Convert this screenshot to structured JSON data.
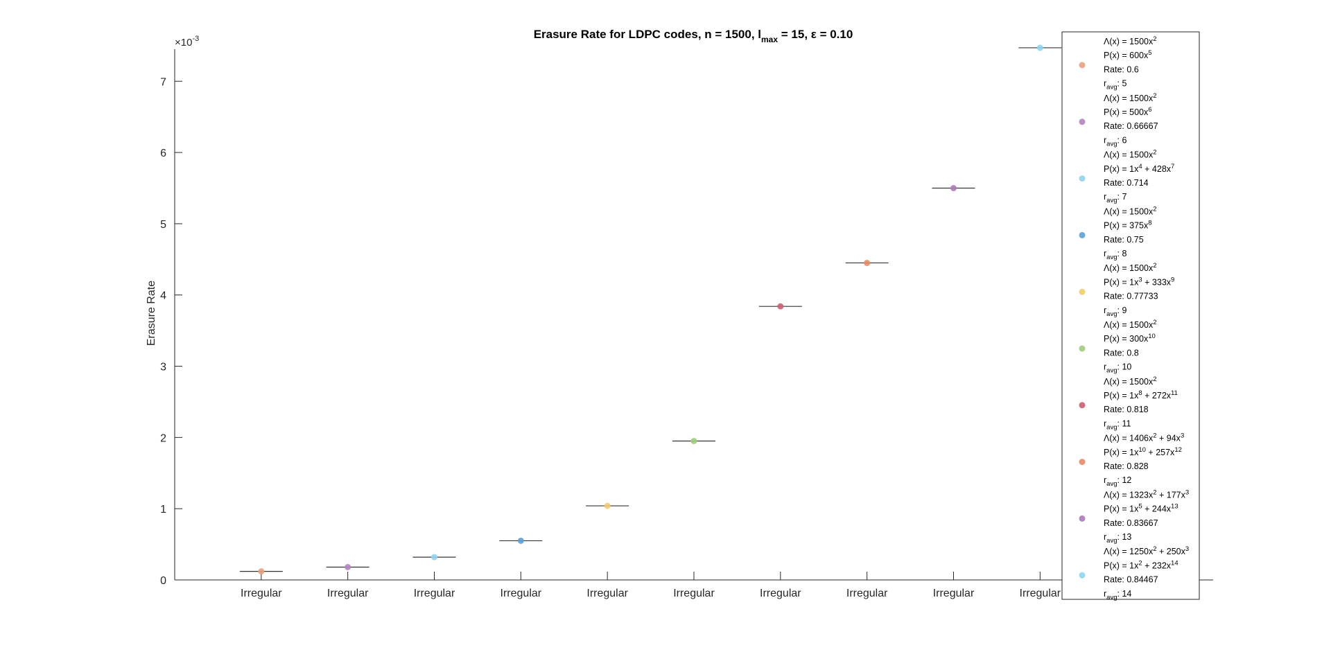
{
  "chart_data": {
    "type": "scatter",
    "title_parts": {
      "pre": "Erasure Rate for LDPC codes, n = 1500, l",
      "sub": "max",
      "post": " = 15, ε = 0.10"
    },
    "xlabel": "",
    "ylabel": "Erasure Rate",
    "y_exponent_label": "×10",
    "y_exponent": "-3",
    "ylim": [
      0,
      7.45
    ],
    "ytick_values": [
      0,
      1,
      2,
      3,
      4,
      5,
      6,
      7
    ],
    "ytick_labels": [
      "0",
      "1",
      "2",
      "3",
      "4",
      "5",
      "6",
      "7"
    ],
    "grid": false,
    "legend_position": "right",
    "x_positions": [
      1,
      2,
      3,
      4,
      5,
      6,
      7,
      8,
      9,
      10
    ],
    "xlim": [
      0,
      12
    ],
    "categories": [
      "Irregular",
      "Irregular",
      "Irregular",
      "Irregular",
      "Irregular",
      "Irregular",
      "Irregular",
      "Irregular",
      "Irregular",
      "Irregular"
    ],
    "series": [
      {
        "values": [
          0.12
        ],
        "median": 0.12,
        "color": "#e8a17f",
        "legend": [
          [
            {
              "t": "Λ(x) = 1500x"
            },
            {
              "t": "2",
              "s": "sup"
            }
          ],
          [
            {
              "t": "P(x) = 600x"
            },
            {
              "t": "5",
              "s": "sup"
            }
          ],
          [
            {
              "t": "Rate: 0.6"
            }
          ],
          [
            {
              "t": "r"
            },
            {
              "t": "avg",
              "s": "sub"
            },
            {
              "t": ": 5"
            }
          ]
        ]
      },
      {
        "values": [
          0.18
        ],
        "median": 0.18,
        "color": "#b583c0",
        "legend": [
          [
            {
              "t": "Λ(x) = 1500x"
            },
            {
              "t": "2",
              "s": "sup"
            }
          ],
          [
            {
              "t": "P(x) = 500x"
            },
            {
              "t": "6",
              "s": "sup"
            }
          ],
          [
            {
              "t": "Rate: 0.66667"
            }
          ],
          [
            {
              "t": "r"
            },
            {
              "t": "avg",
              "s": "sub"
            },
            {
              "t": ": 6"
            }
          ]
        ]
      },
      {
        "values": [
          0.32
        ],
        "median": 0.32,
        "color": "#8fd3ef",
        "legend": [
          [
            {
              "t": "Λ(x) = 1500x"
            },
            {
              "t": "2",
              "s": "sup"
            }
          ],
          [
            {
              "t": "P(x) = 1x"
            },
            {
              "t": "4",
              "s": "sup"
            },
            {
              "t": " + 428x"
            },
            {
              "t": "7",
              "s": "sup"
            }
          ],
          [
            {
              "t": "Rate: 0.714"
            }
          ],
          [
            {
              "t": "r"
            },
            {
              "t": "avg",
              "s": "sub"
            },
            {
              "t": ": 7"
            }
          ]
        ]
      },
      {
        "values": [
          0.55
        ],
        "median": 0.55,
        "color": "#5ca0d8",
        "legend": [
          [
            {
              "t": "Λ(x) = 1500x"
            },
            {
              "t": "2",
              "s": "sup"
            }
          ],
          [
            {
              "t": "P(x) = 375x"
            },
            {
              "t": "8",
              "s": "sup"
            }
          ],
          [
            {
              "t": "Rate: 0.75"
            }
          ],
          [
            {
              "t": "r"
            },
            {
              "t": "avg",
              "s": "sub"
            },
            {
              "t": ": 8"
            }
          ]
        ]
      },
      {
        "values": [
          1.04
        ],
        "median": 1.04,
        "color": "#f2cc6b",
        "legend": [
          [
            {
              "t": "Λ(x) = 1500x"
            },
            {
              "t": "2",
              "s": "sup"
            }
          ],
          [
            {
              "t": "P(x) = 1x"
            },
            {
              "t": "3",
              "s": "sup"
            },
            {
              "t": " + 333x"
            },
            {
              "t": "9",
              "s": "sup"
            }
          ],
          [
            {
              "t": "Rate: 0.77733"
            }
          ],
          [
            {
              "t": "r"
            },
            {
              "t": "avg",
              "s": "sub"
            },
            {
              "t": ": 9"
            }
          ]
        ]
      },
      {
        "values": [
          1.95
        ],
        "median": 1.95,
        "color": "#9fcb7b",
        "legend": [
          [
            {
              "t": "Λ(x) = 1500x"
            },
            {
              "t": "2",
              "s": "sup"
            }
          ],
          [
            {
              "t": "P(x) = 300x"
            },
            {
              "t": "10",
              "s": "sup"
            }
          ],
          [
            {
              "t": "Rate: 0.8"
            }
          ],
          [
            {
              "t": "r"
            },
            {
              "t": "avg",
              "s": "sub"
            },
            {
              "t": ": 10"
            }
          ]
        ]
      },
      {
        "values": [
          3.84
        ],
        "median": 3.84,
        "color": "#cc5f73",
        "legend": [
          [
            {
              "t": "Λ(x) = 1500x"
            },
            {
              "t": "2",
              "s": "sup"
            }
          ],
          [
            {
              "t": "P(x) = 1x"
            },
            {
              "t": "8",
              "s": "sup"
            },
            {
              "t": " + 272x"
            },
            {
              "t": "11",
              "s": "sup"
            }
          ],
          [
            {
              "t": "Rate: 0.818"
            }
          ],
          [
            {
              "t": "r"
            },
            {
              "t": "avg",
              "s": "sub"
            },
            {
              "t": ": 11"
            }
          ]
        ]
      },
      {
        "values": [
          4.45
        ],
        "median": 4.45,
        "color": "#e88a64",
        "legend": [
          [
            {
              "t": "Λ(x) = 1406x"
            },
            {
              "t": "2",
              "s": "sup"
            },
            {
              "t": " + 94x"
            },
            {
              "t": "3",
              "s": "sup"
            }
          ],
          [
            {
              "t": "P(x) = 1x"
            },
            {
              "t": "10",
              "s": "sup"
            },
            {
              "t": " + 257x"
            },
            {
              "t": "12",
              "s": "sup"
            }
          ],
          [
            {
              "t": "Rate: 0.828"
            }
          ],
          [
            {
              "t": "r"
            },
            {
              "t": "avg",
              "s": "sub"
            },
            {
              "t": ": 12"
            }
          ]
        ]
      },
      {
        "values": [
          5.5
        ],
        "median": 5.5,
        "color": "#ad7ab8",
        "legend": [
          [
            {
              "t": "Λ(x) = 1323x"
            },
            {
              "t": "2",
              "s": "sup"
            },
            {
              "t": " + 177x"
            },
            {
              "t": "3",
              "s": "sup"
            }
          ],
          [
            {
              "t": "P(x) = 1x"
            },
            {
              "t": "5",
              "s": "sup"
            },
            {
              "t": " + 244x"
            },
            {
              "t": "13",
              "s": "sup"
            }
          ],
          [
            {
              "t": "Rate: 0.83667"
            }
          ],
          [
            {
              "t": "r"
            },
            {
              "t": "avg",
              "s": "sub"
            },
            {
              "t": ": 13"
            }
          ]
        ]
      },
      {
        "values": [
          7.47
        ],
        "median": 7.47,
        "color": "#8fd3ef",
        "legend": [
          [
            {
              "t": "Λ(x) = 1250x"
            },
            {
              "t": "2",
              "s": "sup"
            },
            {
              "t": " + 250x"
            },
            {
              "t": "3",
              "s": "sup"
            }
          ],
          [
            {
              "t": "P(x) = 1x"
            },
            {
              "t": "2",
              "s": "sup"
            },
            {
              "t": " + 232x"
            },
            {
              "t": "14",
              "s": "sup"
            }
          ],
          [
            {
              "t": "Rate: 0.84467"
            }
          ],
          [
            {
              "t": "r"
            },
            {
              "t": "avg",
              "s": "sub"
            },
            {
              "t": ": 14"
            }
          ]
        ]
      }
    ]
  }
}
